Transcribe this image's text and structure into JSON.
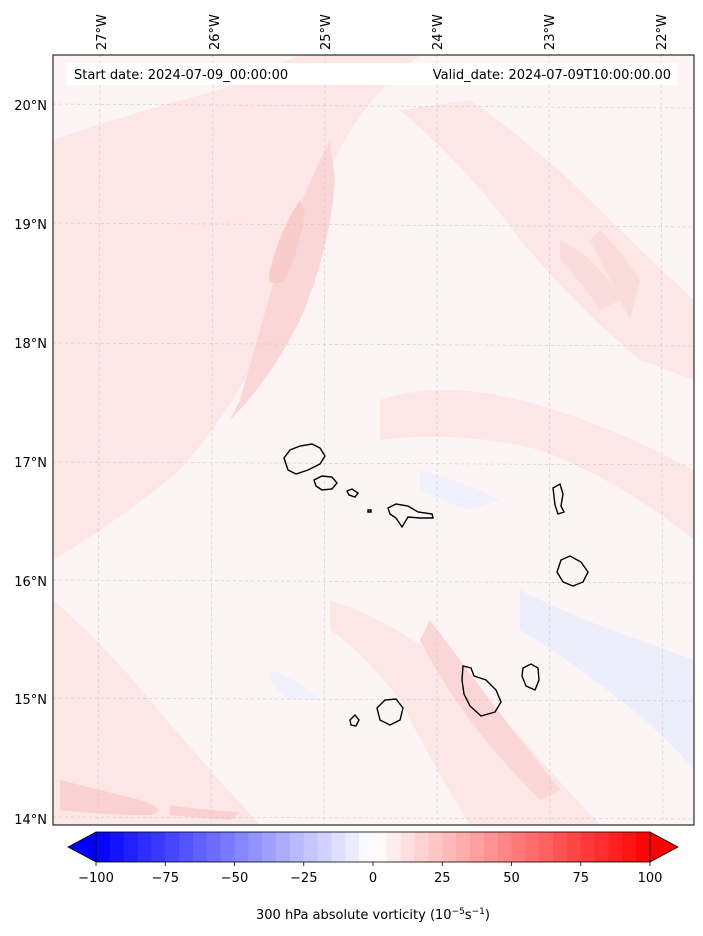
{
  "map": {
    "start_date_text": "Start date: 2024-07-09_00:00:00",
    "valid_date_text": "Valid_date: 2024-07-09T10:00:00.00",
    "longitudes": [
      "27°W",
      "26°W",
      "25°W",
      "24°W",
      "23°W",
      "22°W"
    ],
    "latitudes": [
      "20°N",
      "19°N",
      "18°N",
      "17°N",
      "16°N",
      "15°N",
      "14°N"
    ],
    "islands": [
      "Santo Antão",
      "São Vicente",
      "Santa Luzia",
      "Branco",
      "São Nicolau",
      "Sal",
      "Boa Vista",
      "Maio",
      "Santiago",
      "Fogo",
      "Brava"
    ],
    "gridlines": true,
    "field_colors": {
      "background": "#fdf5f5",
      "light_red": "#fde6e6",
      "medium_red": "#fbd6d6",
      "light_blue": "#eceefc"
    }
  },
  "colorbar": {
    "label_text": "300 hPa absolute vorticity (10",
    "label_exponent": "−5",
    "label_unit_s": "s",
    "label_unit_exponent": "−1",
    "label_close": ")",
    "ticks": [
      "−100",
      "−75",
      "−50",
      "−25",
      "0",
      "25",
      "50",
      "75",
      "100"
    ],
    "min": -100,
    "max": 100,
    "colormap": "bwr",
    "extend": "both"
  }
}
